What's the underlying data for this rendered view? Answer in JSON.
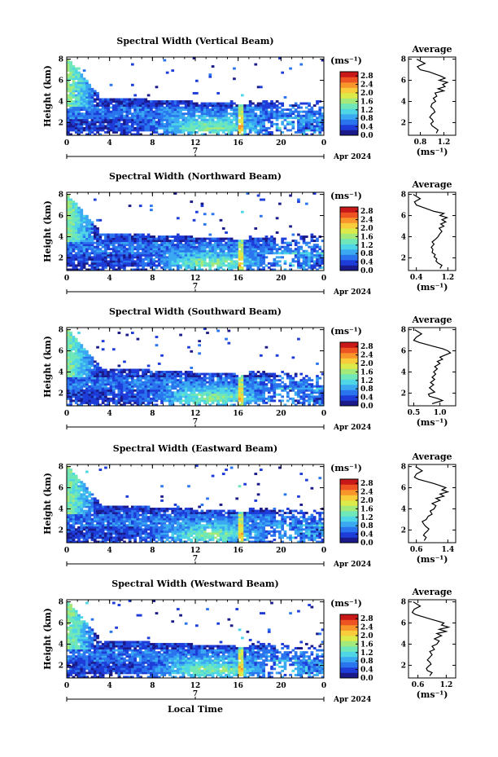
{
  "colors": {
    "colorscale": [
      "#1a1a8a",
      "#1e3cd8",
      "#2a74ee",
      "#3aa9f2",
      "#4fd6e6",
      "#6fe7b8",
      "#a4ea7a",
      "#dcea4a",
      "#f8cc3a",
      "#f8962c",
      "#ee5422",
      "#c81818"
    ],
    "background": "#ffffff",
    "line": "#000000"
  },
  "shared": {
    "unit_label": "(ms⁻¹)",
    "date_label": "Apr 2024",
    "day_label": "7",
    "avg_title": "Average",
    "xlabel": "Local Time"
  },
  "chart_data": [
    {
      "type": "heatmap",
      "title": "Spectral Width (Vertical Beam)",
      "ylabel": "Height (km)",
      "x_ticks": [
        "0",
        "4",
        "8",
        "12",
        "16",
        "20",
        "0"
      ],
      "y_ticks": [
        "2",
        "4",
        "6",
        "8"
      ],
      "xlim": [
        0,
        24
      ],
      "ylim": [
        0.8,
        8.2
      ],
      "colorbar": {
        "ticks": [
          "0.0",
          "0.4",
          "0.8",
          "1.2",
          "1.6",
          "2.0",
          "2.4",
          "2.8"
        ],
        "range": [
          0.0,
          3.0
        ]
      },
      "average_profile": {
        "type": "line",
        "xlim": [
          0.6,
          1.4
        ],
        "x_ticks": [
          "0.8",
          "1.2"
        ],
        "y_ticks": [
          "2",
          "4",
          "6",
          "8"
        ],
        "x": [
          1.07,
          1.1,
          1.05,
          1.0,
          0.98,
          1.02,
          1.0,
          0.96,
          1.0,
          1.05,
          1.02,
          0.98,
          1.0,
          1.06,
          1.02,
          1.08,
          1.05,
          1.2,
          1.1,
          1.22,
          1.18,
          1.26,
          1.12,
          1.22,
          1.15,
          1.05,
          0.95,
          0.8,
          0.75,
          0.88,
          0.74
        ],
        "height": [
          1.0,
          1.3,
          1.5,
          1.7,
          1.9,
          2.1,
          2.3,
          2.5,
          2.8,
          3.0,
          3.3,
          3.5,
          3.8,
          4.0,
          4.3,
          4.5,
          4.8,
          5.0,
          5.2,
          5.4,
          5.6,
          5.8,
          6.0,
          6.2,
          6.4,
          6.6,
          6.8,
          7.0,
          7.3,
          7.6,
          8.0
        ]
      }
    },
    {
      "type": "heatmap",
      "title": "Spectral Width (Northward Beam)",
      "ylabel": "Height (km)",
      "x_ticks": [
        "0",
        "4",
        "8",
        "12",
        "16",
        "20",
        "0"
      ],
      "y_ticks": [
        "2",
        "4",
        "6",
        "8"
      ],
      "xlim": [
        0,
        24
      ],
      "ylim": [
        0.8,
        8.2
      ],
      "colorbar": {
        "ticks": [
          "0.0",
          "0.4",
          "0.8",
          "1.2",
          "1.6",
          "2.0",
          "2.4",
          "2.8"
        ],
        "range": [
          0.0,
          3.0
        ]
      },
      "average_profile": {
        "type": "line",
        "xlim": [
          0.2,
          1.4
        ],
        "x_ticks": [
          "0.4",
          "1.2"
        ],
        "y_ticks": [
          "2",
          "4",
          "6",
          "8"
        ],
        "x": [
          1.0,
          1.05,
          0.95,
          0.9,
          0.92,
          0.85,
          0.88,
          0.8,
          0.82,
          0.78,
          0.85,
          0.8,
          0.9,
          0.95,
          1.0,
          1.05,
          0.98,
          1.1,
          1.02,
          1.15,
          1.05,
          1.18,
          1.0,
          1.1,
          0.85,
          0.7,
          0.55,
          0.4,
          0.35,
          0.5,
          0.32
        ],
        "height": [
          1.0,
          1.3,
          1.5,
          1.7,
          1.9,
          2.1,
          2.3,
          2.5,
          2.8,
          3.0,
          3.3,
          3.5,
          3.8,
          4.0,
          4.3,
          4.5,
          4.8,
          5.0,
          5.2,
          5.4,
          5.6,
          5.8,
          6.0,
          6.2,
          6.4,
          6.6,
          6.8,
          7.0,
          7.3,
          7.6,
          8.0
        ]
      }
    },
    {
      "type": "heatmap",
      "title": "Spectral Width (Southward Beam)",
      "ylabel": "Height (km)",
      "x_ticks": [
        "0",
        "4",
        "8",
        "12",
        "16",
        "20",
        "0"
      ],
      "y_ticks": [
        "2",
        "4",
        "6",
        "8"
      ],
      "xlim": [
        0,
        24
      ],
      "ylim": [
        0.8,
        8.2
      ],
      "colorbar": {
        "ticks": [
          "0.0",
          "0.4",
          "0.8",
          "1.2",
          "1.6",
          "2.0",
          "2.4",
          "2.8"
        ],
        "range": [
          0.0,
          3.0
        ]
      },
      "average_profile": {
        "type": "line",
        "xlim": [
          0.4,
          1.3
        ],
        "x_ticks": [
          "0.5",
          "1.0"
        ],
        "y_ticks": [
          "2",
          "4",
          "6",
          "8"
        ],
        "x": [
          0.85,
          1.05,
          0.95,
          0.8,
          0.78,
          0.9,
          0.85,
          0.8,
          0.88,
          0.82,
          0.9,
          0.85,
          0.92,
          0.88,
          0.95,
          0.9,
          1.0,
          0.95,
          1.05,
          1.0,
          1.1,
          1.2,
          1.15,
          1.05,
          0.9,
          0.75,
          0.6,
          0.5,
          0.55,
          0.65,
          0.52
        ],
        "height": [
          1.0,
          1.3,
          1.5,
          1.7,
          1.9,
          2.1,
          2.3,
          2.5,
          2.8,
          3.0,
          3.3,
          3.5,
          3.8,
          4.0,
          4.3,
          4.5,
          4.8,
          5.0,
          5.2,
          5.4,
          5.6,
          5.8,
          6.0,
          6.2,
          6.4,
          6.6,
          6.8,
          7.0,
          7.3,
          7.6,
          8.0
        ]
      }
    },
    {
      "type": "heatmap",
      "title": "Spectral Width (Eastward Beam)",
      "ylabel": "Height (km)",
      "x_ticks": [
        "0",
        "4",
        "8",
        "12",
        "16",
        "20",
        "0"
      ],
      "y_ticks": [
        "2",
        "4",
        "6",
        "8"
      ],
      "xlim": [
        0,
        24
      ],
      "ylim": [
        0.8,
        8.2
      ],
      "colorbar": {
        "ticks": [
          "0.0",
          "0.4",
          "0.8",
          "1.2",
          "1.6",
          "2.0",
          "2.4",
          "2.8"
        ],
        "range": [
          0.0,
          3.0
        ]
      },
      "average_profile": {
        "type": "line",
        "xlim": [
          0.4,
          1.6
        ],
        "x_ticks": [
          "0.6",
          "1.4"
        ],
        "y_ticks": [
          "2",
          "4",
          "6",
          "8"
        ],
        "x": [
          0.8,
          0.85,
          0.78,
          0.82,
          0.88,
          0.92,
          0.85,
          0.8,
          0.75,
          0.85,
          0.9,
          1.0,
          0.95,
          1.05,
          1.1,
          1.0,
          1.2,
          1.1,
          1.3,
          1.2,
          1.4,
          1.25,
          1.35,
          1.2,
          1.05,
          0.85,
          0.65,
          0.55,
          0.6,
          0.75,
          0.58
        ],
        "height": [
          1.0,
          1.3,
          1.5,
          1.7,
          1.9,
          2.1,
          2.3,
          2.5,
          2.8,
          3.0,
          3.3,
          3.5,
          3.8,
          4.0,
          4.3,
          4.5,
          4.8,
          5.0,
          5.2,
          5.4,
          5.6,
          5.8,
          6.0,
          6.2,
          6.4,
          6.6,
          6.8,
          7.0,
          7.3,
          7.6,
          8.0
        ]
      }
    },
    {
      "type": "heatmap",
      "title": "Spectral Width (Westward Beam)",
      "ylabel": "Height (km)",
      "x_ticks": [
        "0",
        "4",
        "8",
        "12",
        "16",
        "20",
        "0"
      ],
      "y_ticks": [
        "2",
        "4",
        "6",
        "8"
      ],
      "xlim": [
        0,
        24
      ],
      "ylim": [
        0.8,
        8.2
      ],
      "colorbar": {
        "ticks": [
          "0.0",
          "0.4",
          "0.8",
          "1.2",
          "1.6",
          "2.0",
          "2.4",
          "2.8"
        ],
        "range": [
          0.0,
          3.0
        ]
      },
      "average_profile": {
        "type": "line",
        "xlim": [
          0.4,
          1.4
        ],
        "x_ticks": [
          "0.6",
          "1.2"
        ],
        "y_ticks": [
          "2",
          "4",
          "6",
          "8"
        ],
        "x": [
          0.85,
          0.9,
          0.8,
          0.78,
          0.82,
          0.88,
          0.85,
          0.8,
          0.86,
          0.9,
          0.85,
          0.95,
          0.9,
          1.0,
          1.05,
          0.95,
          1.1,
          1.0,
          1.2,
          1.05,
          1.25,
          1.1,
          1.15,
          1.0,
          0.85,
          0.7,
          0.55,
          0.48,
          0.52,
          0.65,
          0.5
        ],
        "height": [
          1.0,
          1.3,
          1.5,
          1.7,
          1.9,
          2.1,
          2.3,
          2.5,
          2.8,
          3.0,
          3.3,
          3.5,
          3.8,
          4.0,
          4.3,
          4.5,
          4.8,
          5.0,
          5.2,
          5.4,
          5.6,
          5.8,
          6.0,
          6.2,
          6.4,
          6.6,
          6.8,
          7.0,
          7.3,
          7.6,
          8.0
        ]
      }
    }
  ]
}
